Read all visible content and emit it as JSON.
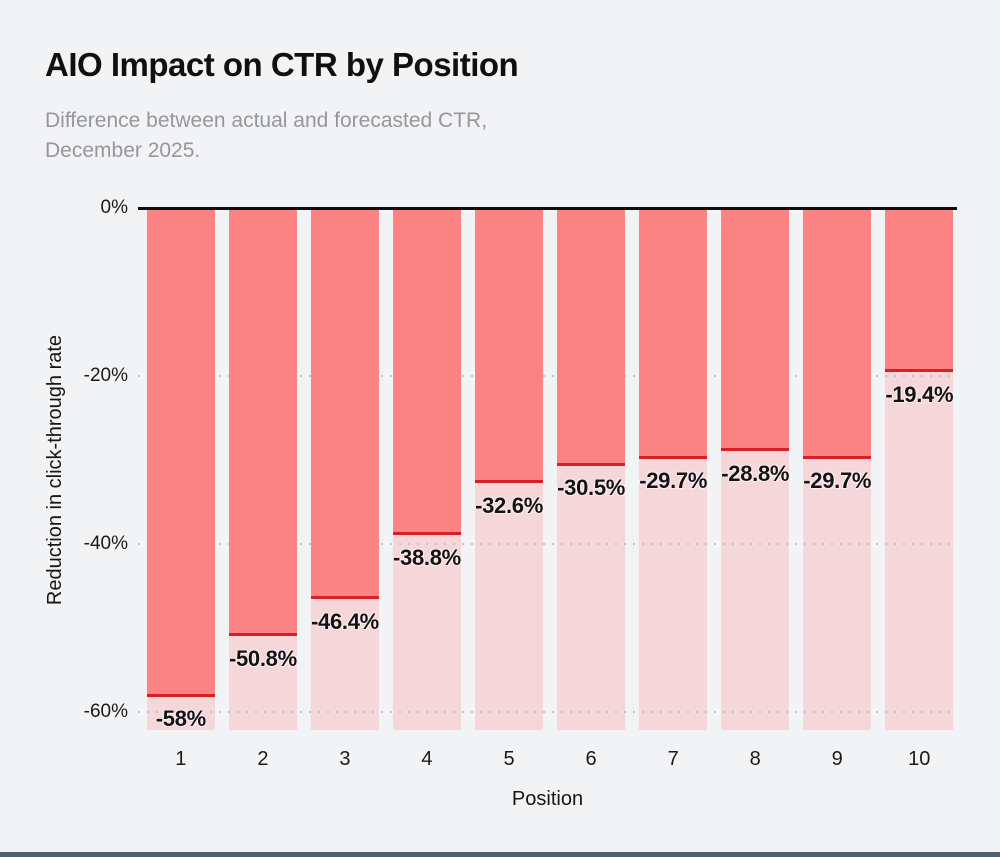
{
  "header": {
    "title": "AIO Impact on CTR by Position",
    "subtitle_line1": "Difference between actual and forecasted CTR,",
    "subtitle_line2": "December 2025."
  },
  "chart_data": {
    "type": "bar",
    "title": "AIO Impact on CTR by Position",
    "subtitle": "Difference between actual and forecasted CTR, December 2025.",
    "xlabel": "Position",
    "ylabel": "Reduction in click-through rate",
    "categories": [
      "1",
      "2",
      "3",
      "4",
      "5",
      "6",
      "7",
      "8",
      "9",
      "10"
    ],
    "values": [
      -58,
      -50.8,
      -46.4,
      -38.8,
      -32.6,
      -30.5,
      -29.7,
      -28.8,
      -29.7,
      -19.4
    ],
    "value_labels": [
      "-58%",
      "-50.8%",
      "-46.4%",
      "-38.8%",
      "-32.6%",
      "-30.5%",
      "-29.7%",
      "-28.8%",
      "-29.7%",
      "-19.4%"
    ],
    "ylim": [
      -62.1,
      0
    ],
    "yticks": [
      {
        "value": 0,
        "label": "0%"
      },
      {
        "value": -20,
        "label": "-20%"
      },
      {
        "value": -40,
        "label": "-40%"
      },
      {
        "value": -60,
        "label": "-60%"
      }
    ],
    "grid": "horizontal dotted lines at -20%, -40%, -60%; solid black baseline at 0%",
    "legend": "none",
    "colors": {
      "bar": "#fb8383",
      "bar_remainder": "rgba(255,130,140,0.26)",
      "marker_line": "#d62029",
      "baseline": "#0e0e0e",
      "gridline_dots": "#c3c4c8",
      "background": "#f2f3f5",
      "title_text": "#101010",
      "subtitle_text": "#96979b",
      "footer_bar": "#4d616e"
    }
  },
  "footer": {
    "bar_color": "#4d616e"
  }
}
